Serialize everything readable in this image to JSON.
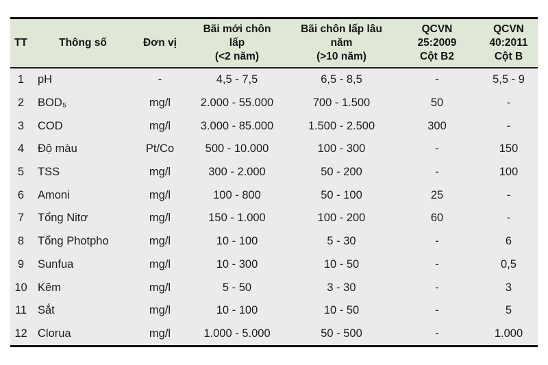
{
  "colors": {
    "header_bg": "#dfe8d6",
    "body_bg": "#ebebeb",
    "border_dark": "#101010",
    "text": "#1c1c1c",
    "page_bg": "#ffffff"
  },
  "table": {
    "columns": [
      {
        "key": "tt",
        "label": "TT"
      },
      {
        "key": "param",
        "label": "Thông số"
      },
      {
        "key": "unit",
        "label": "Đơn vị"
      },
      {
        "key": "new_landfill",
        "label": "Bãi mới chôn\nlấp\n(<2 năm)"
      },
      {
        "key": "old_landfill",
        "label": "Bãi chôn lấp lâu\nnăm\n(>10 năm)"
      },
      {
        "key": "qcvn25",
        "label": "QCVN\n25:2009\nCột B2"
      },
      {
        "key": "qcvn40",
        "label": "QCVN\n40:2011\nCột B"
      }
    ],
    "rows": [
      [
        "1",
        "pH",
        "-",
        "4,5 - 7,5",
        "6,5 - 8,5",
        "-",
        "5,5 - 9"
      ],
      [
        "2",
        "BOD₅",
        "mg/l",
        "2.000 - 55.000",
        "700 - 1.500",
        "50",
        "-"
      ],
      [
        "3",
        "COD",
        "mg/l",
        "3.000 - 85.000",
        "1.500 - 2.500",
        "300",
        "-"
      ],
      [
        "4",
        "Độ màu",
        "Pt/Co",
        "500 - 10.000",
        "100 - 300",
        "-",
        "150"
      ],
      [
        "5",
        "TSS",
        "mg/l",
        "300 - 2.000",
        "50 - 200",
        "-",
        "100"
      ],
      [
        "6",
        "Amoni",
        "mg/l",
        "100 - 800",
        "50 - 100",
        "25",
        "-"
      ],
      [
        "7",
        "Tổng Nitơ",
        "mg/l",
        "150 - 1.000",
        "100 - 200",
        "60",
        "-"
      ],
      [
        "8",
        "Tổng Photpho",
        "mg/l",
        "10 - 100",
        "5 - 30",
        "-",
        "6"
      ],
      [
        "9",
        "Sunfua",
        "mg/l",
        "10 - 300",
        "10 - 50",
        "-",
        "0,5"
      ],
      [
        "10",
        "Kẽm",
        "mg/l",
        "5 - 50",
        "3 - 30",
        "-",
        "3"
      ],
      [
        "11",
        "Sắt",
        "mg/l",
        "10 - 100",
        "10 - 50",
        "-",
        "5"
      ],
      [
        "12",
        "Clorua",
        "mg/l",
        "1.000 - 5.000",
        "50 - 500",
        "-",
        "1.000"
      ]
    ]
  }
}
